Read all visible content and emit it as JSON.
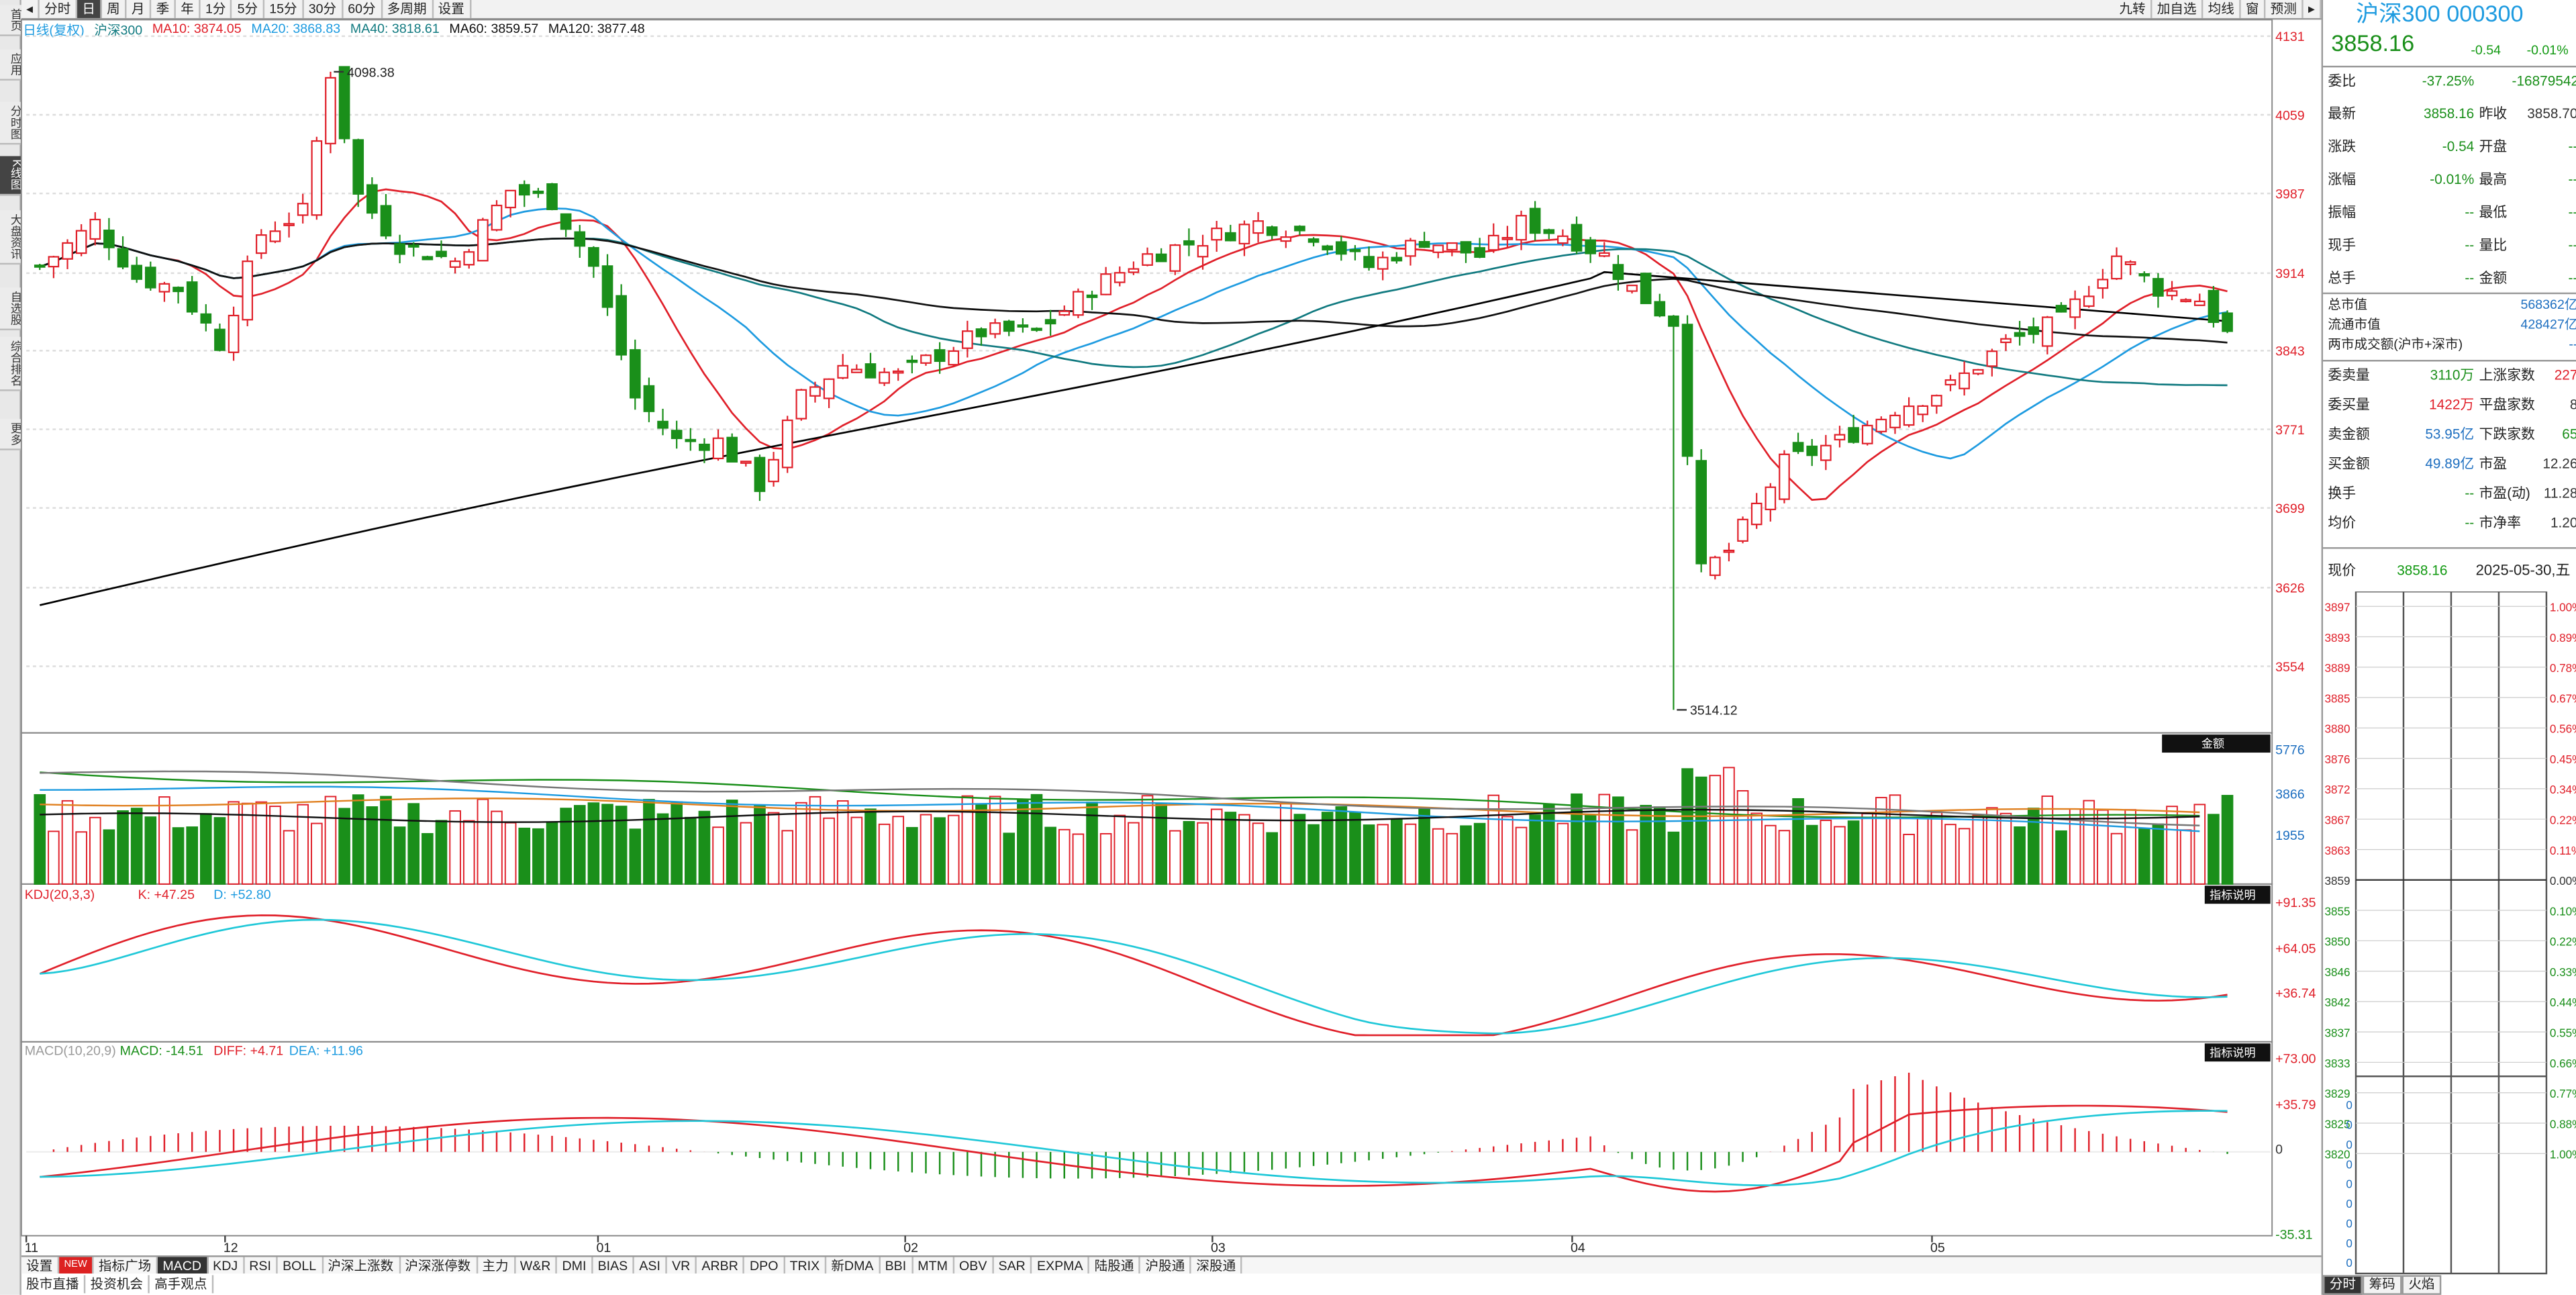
{
  "left_bar": [
    "首页",
    "应用",
    "分时图",
    "K线图",
    "大盘资讯",
    "自选股",
    "综合排名",
    "更多"
  ],
  "toolbar": {
    "left": [
      "分时",
      "日",
      "周",
      "月",
      "季",
      "年",
      "1分",
      "5分",
      "15分",
      "30分",
      "60分",
      "多周期",
      "设置"
    ],
    "right": [
      "九转",
      "加自选",
      "均线",
      "窗",
      "预测"
    ]
  },
  "legend": {
    "l0": "日线(复权)",
    "l1": "沪深300",
    "l2": "MA10: 3874.05",
    "l3": "MA20: 3868.83",
    "l4": "MA40: 3818.61",
    "l5": "MA60: 3859.57",
    "l6": "MA120: 3877.48"
  },
  "price_axis": [
    "4131",
    "4059",
    "3987",
    "3914",
    "3843",
    "3771",
    "3699",
    "3626",
    "3554"
  ],
  "annotations": {
    "high": "4098.38",
    "low": "3514.12"
  },
  "vol_axis": [
    "5776",
    "3866",
    "1955"
  ],
  "vol_btn": "金额",
  "kdj": {
    "label": "KDJ(20,3,3)",
    "k": "K: +47.25",
    "d": "D: +52.80",
    "axis": [
      "+91.35",
      "+64.05",
      "+36.74"
    ],
    "btn": "指标说明"
  },
  "macd": {
    "label": "MACD(10,20,9)",
    "macd": "MACD: -14.51",
    "diff": "DIFF: +4.71",
    "dea": "DEA: +11.96",
    "axis": [
      "+73.00",
      "+35.79",
      "0",
      "-35.31"
    ],
    "btn": "指标说明"
  },
  "x_axis": [
    "11",
    "12",
    "01",
    "02",
    "03",
    "04",
    "05"
  ],
  "bottom_tabs": [
    "设置",
    "NEW",
    "指标广场",
    "MACD",
    "KDJ",
    "RSI",
    "BOLL",
    "沪深上涨数",
    "沪深涨停数",
    "主力",
    "W&R",
    "DMI",
    "BIAS",
    "ASI",
    "VR",
    "ARBR",
    "DPO",
    "TRIX",
    "新DMA",
    "BBI",
    "MTM",
    "OBV",
    "SAR",
    "EXPMA",
    "陆股通",
    "沪股通",
    "深股通"
  ],
  "bottom_tabs2": [
    "股市直播",
    "投资机会",
    "高手观点"
  ],
  "right_panel": {
    "title": "沪深300 000300",
    "price": "3858.16",
    "chg": "-0.54",
    "pct": "-0.01%",
    "rows": [
      [
        "委比",
        "-37.25%",
        "",
        "-16879542"
      ],
      [
        "最新",
        "3858.16",
        "昨收",
        "3858.70"
      ],
      [
        "涨跌",
        "-0.54",
        "开盘",
        "--"
      ],
      [
        "涨幅",
        "-0.01%",
        "最高",
        "--"
      ],
      [
        "振幅",
        "--",
        "最低",
        "--"
      ],
      [
        "现手",
        "--",
        "量比",
        "--"
      ],
      [
        "总手",
        "--",
        "金额",
        "--"
      ]
    ],
    "mv": [
      [
        "总市值",
        "568362亿"
      ],
      [
        "流通市值",
        "428427亿"
      ],
      [
        "两市成交额(沪市+深市)",
        "--"
      ]
    ],
    "stats": [
      [
        "委卖量",
        "3110万",
        "上涨家数",
        "227"
      ],
      [
        "委买量",
        "1422万",
        "平盘家数",
        "8"
      ],
      [
        "卖金额",
        "53.95亿",
        "下跌家数",
        "65"
      ],
      [
        "买金额",
        "49.89亿",
        "市盈",
        "12.26"
      ],
      [
        "换手",
        "--",
        "市盈(动)",
        "11.28"
      ],
      [
        "均价",
        "--",
        "市净率",
        "1.20"
      ]
    ],
    "now": {
      "label": "现价",
      "price": "3858.16",
      "date": "2025-05-30,五"
    },
    "ladder_prices": [
      "3897",
      "3893",
      "3889",
      "3885",
      "3880",
      "3876",
      "3872",
      "3867",
      "3863",
      "3859",
      "3855",
      "3850",
      "3846",
      "3842",
      "3837",
      "3833",
      "3829",
      "3825",
      "3820"
    ],
    "ladder_pcts": [
      "1.00%",
      "0.89%",
      "0.78%",
      "0.67%",
      "0.56%",
      "0.45%",
      "0.34%",
      "0.22%",
      "0.11%",
      "0.00%",
      "0.10%",
      "0.22%",
      "0.33%",
      "0.44%",
      "0.55%",
      "0.66%",
      "0.77%",
      "0.88%",
      "1.00%"
    ],
    "ladder_zero": [
      "0",
      "0",
      "0",
      "0",
      "0",
      "0",
      "0",
      "0",
      "0"
    ],
    "tabs": [
      "分时",
      "筹码",
      "火焰"
    ]
  },
  "colors": {
    "up": "#e0202a",
    "down": "#1a8f1a",
    "ma10": "#e0202a",
    "ma20": "#1e9be0",
    "ma40": "#117a80",
    "ma60": "#111111",
    "ma120": "#000000"
  }
}
